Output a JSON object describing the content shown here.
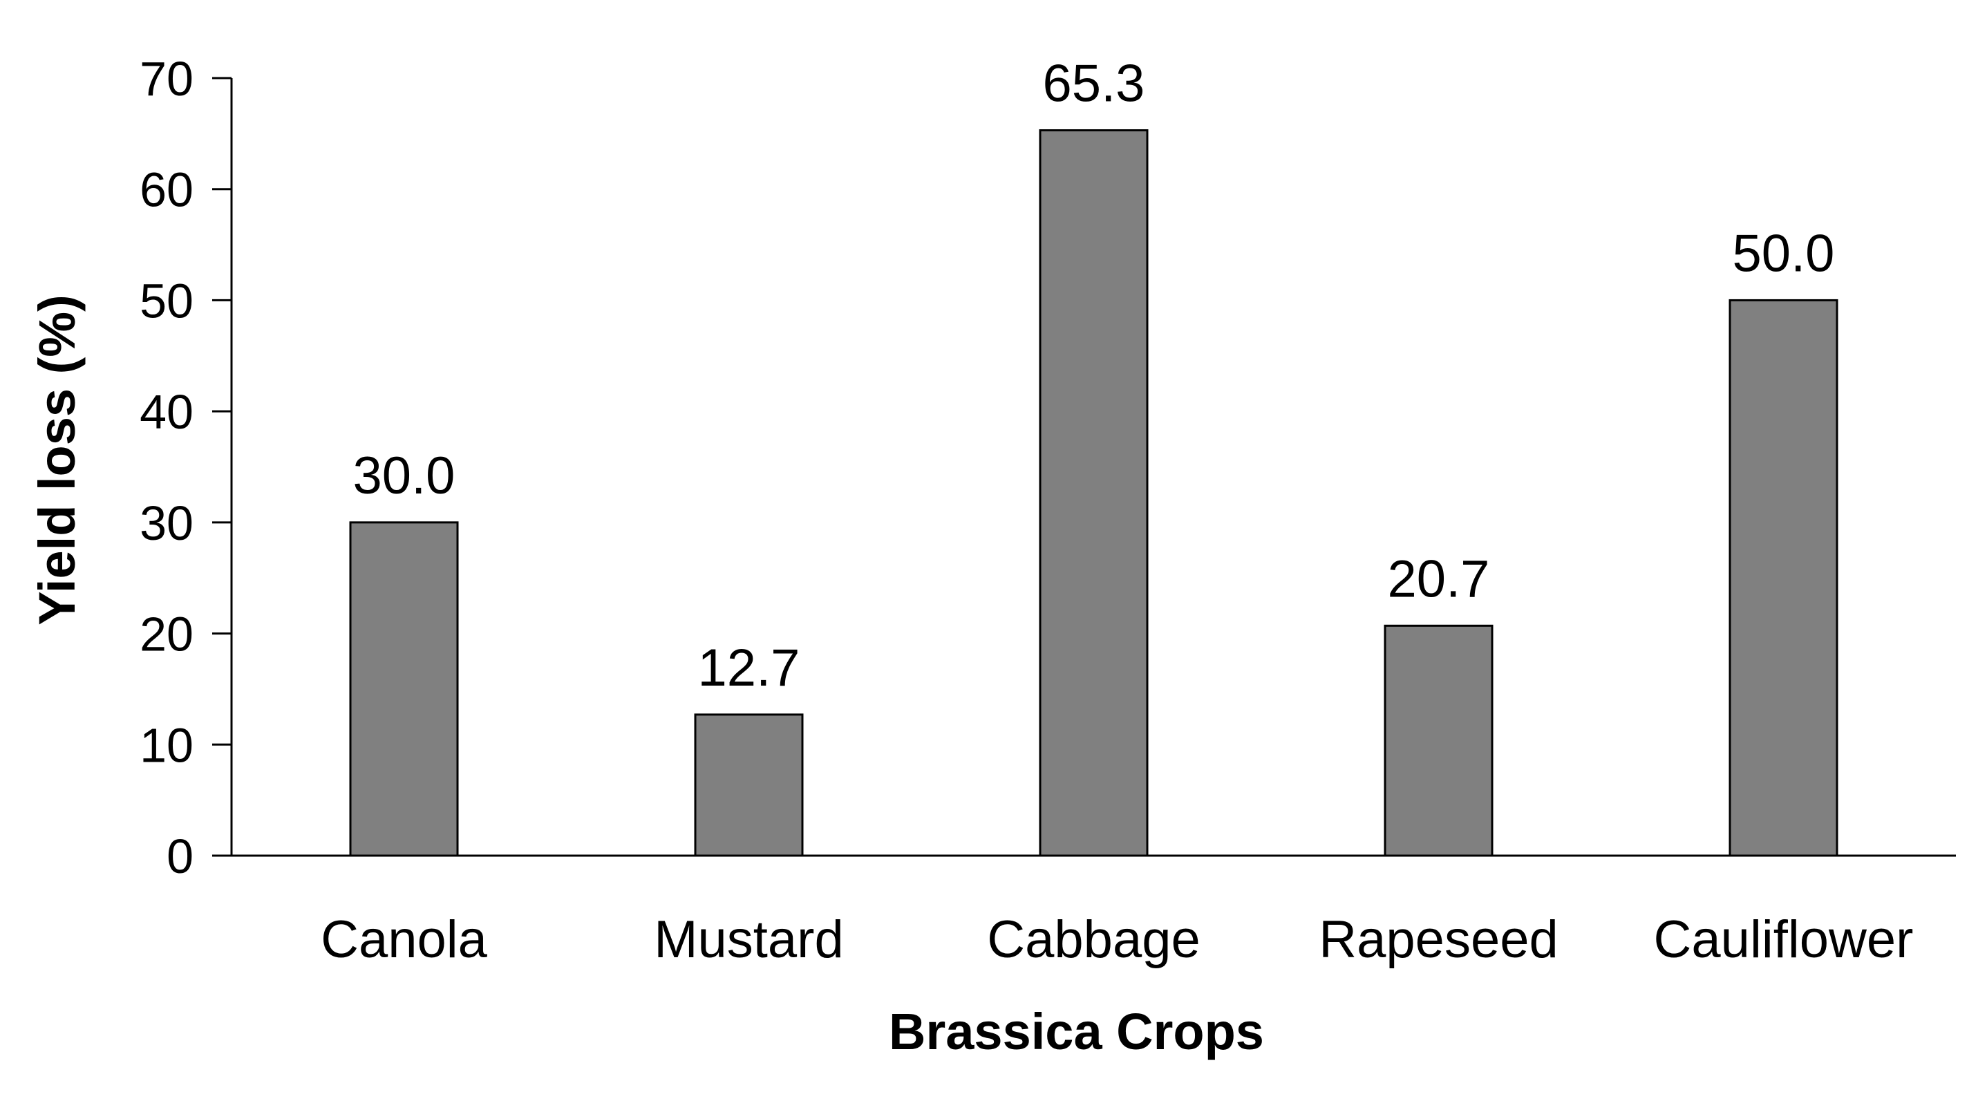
{
  "chart_data": {
    "type": "bar",
    "categories": [
      "Canola",
      "Mustard",
      "Cabbage",
      "Rapeseed",
      "Cauliflower"
    ],
    "values": [
      30.0,
      12.7,
      65.3,
      20.7,
      50.0
    ],
    "data_labels": [
      "30.0",
      "12.7",
      "65.3",
      "20.7",
      "50.0"
    ],
    "xlabel": "Brassica Crops",
    "ylabel": "Yield loss (%)",
    "ylim": [
      0,
      70
    ],
    "yticks": [
      0,
      10,
      20,
      30,
      40,
      50,
      60,
      70
    ],
    "grid": false,
    "legend": "none",
    "bar_color": "#808080",
    "bar_edge_color": "#000000"
  }
}
